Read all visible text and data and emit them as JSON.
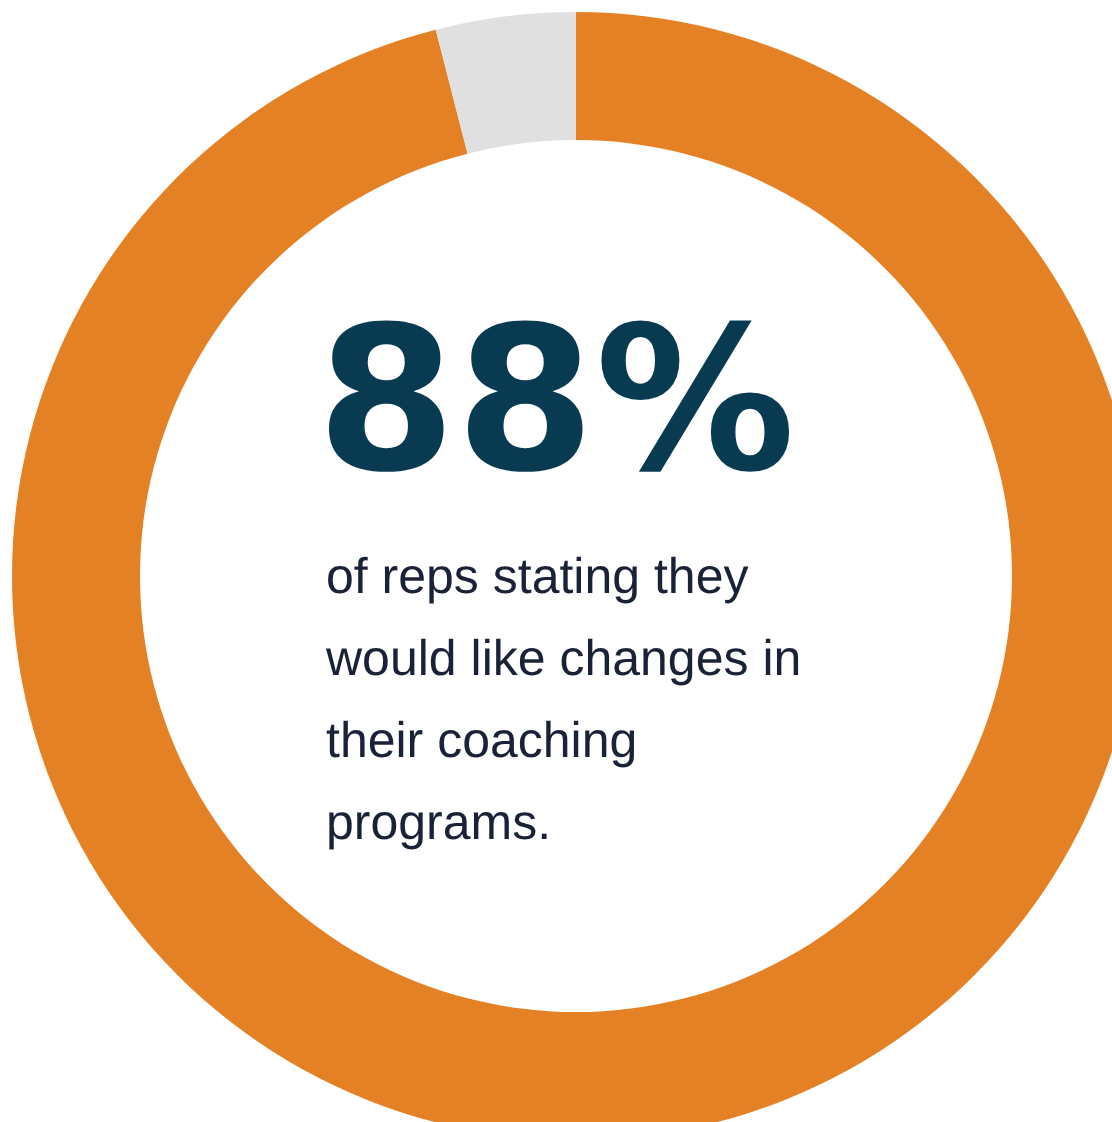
{
  "chart_data": {
    "type": "donut",
    "title": "88%",
    "subtitle": "of reps stating they would like changes in their coaching programs.",
    "categories": [
      null,
      null
    ],
    "values": [
      96,
      4
    ],
    "colors": [
      "#e58125",
      "#e0e0e0"
    ]
  }
}
